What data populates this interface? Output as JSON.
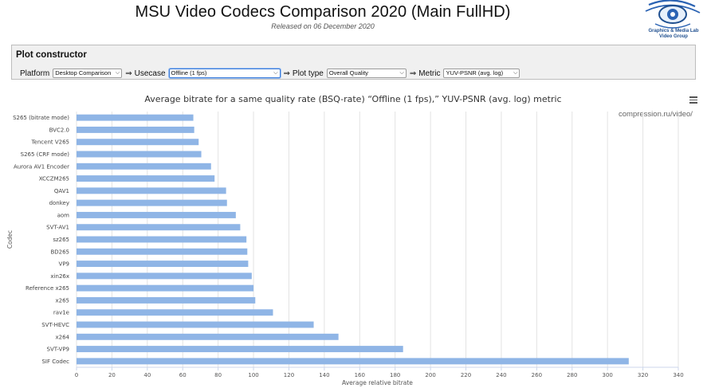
{
  "header": {
    "title": "MSU Video Codecs Comparison 2020 (Main FullHD)",
    "subtitle": "Released on 06 December 2020",
    "logo_text_line1": "Graphics & Media Lab",
    "logo_text_line2": "Video Group"
  },
  "plot_constructor": {
    "title": "Plot constructor",
    "platform_label": "Platform",
    "platform_value": "Desktop Comparison",
    "usecase_label": "Usecase",
    "usecase_value": "Offline (1 fps)",
    "plot_type_label": "Plot type",
    "plot_type_value": "Overall Quality",
    "metric_label": "Metric",
    "metric_value": "YUV-PSNR (avg. log)",
    "arrow": "⇒"
  },
  "chart_credit": "compression.ru/video/",
  "chart_data": {
    "type": "bar",
    "orientation": "horizontal",
    "title": "Average bitrate for a same quality rate (BSQ-rate) “Offline (1 fps),” YUV-PSNR (avg. log) metric",
    "xlabel": "Average relative bitrate",
    "ylabel": "Codec",
    "xlim": [
      0,
      340
    ],
    "xticks": [
      0,
      20,
      40,
      60,
      80,
      100,
      120,
      140,
      160,
      180,
      200,
      220,
      240,
      260,
      280,
      300,
      320,
      340
    ],
    "grid": true,
    "bar_color": "#8fb5e6",
    "categories": [
      "S265 (bitrate mode)",
      "BVC2.0",
      "Tencent V265",
      "S265 (CRF mode)",
      "Aurora AV1 Encoder",
      "XCCZM265",
      "QAV1",
      "donkey",
      "aom",
      "SVT-AV1",
      "sz265",
      "BD265",
      "VP9",
      "xin26x",
      "Reference x265",
      "x265",
      "rav1e",
      "SVT-HEVC",
      "x264",
      "SVT-VP9",
      "SIF Codec"
    ],
    "values": [
      66,
      66.5,
      69,
      70.5,
      76,
      78,
      84.5,
      85,
      90,
      92.5,
      96,
      96.5,
      97,
      99,
      100,
      101,
      111,
      134,
      148,
      184.5,
      312
    ]
  }
}
